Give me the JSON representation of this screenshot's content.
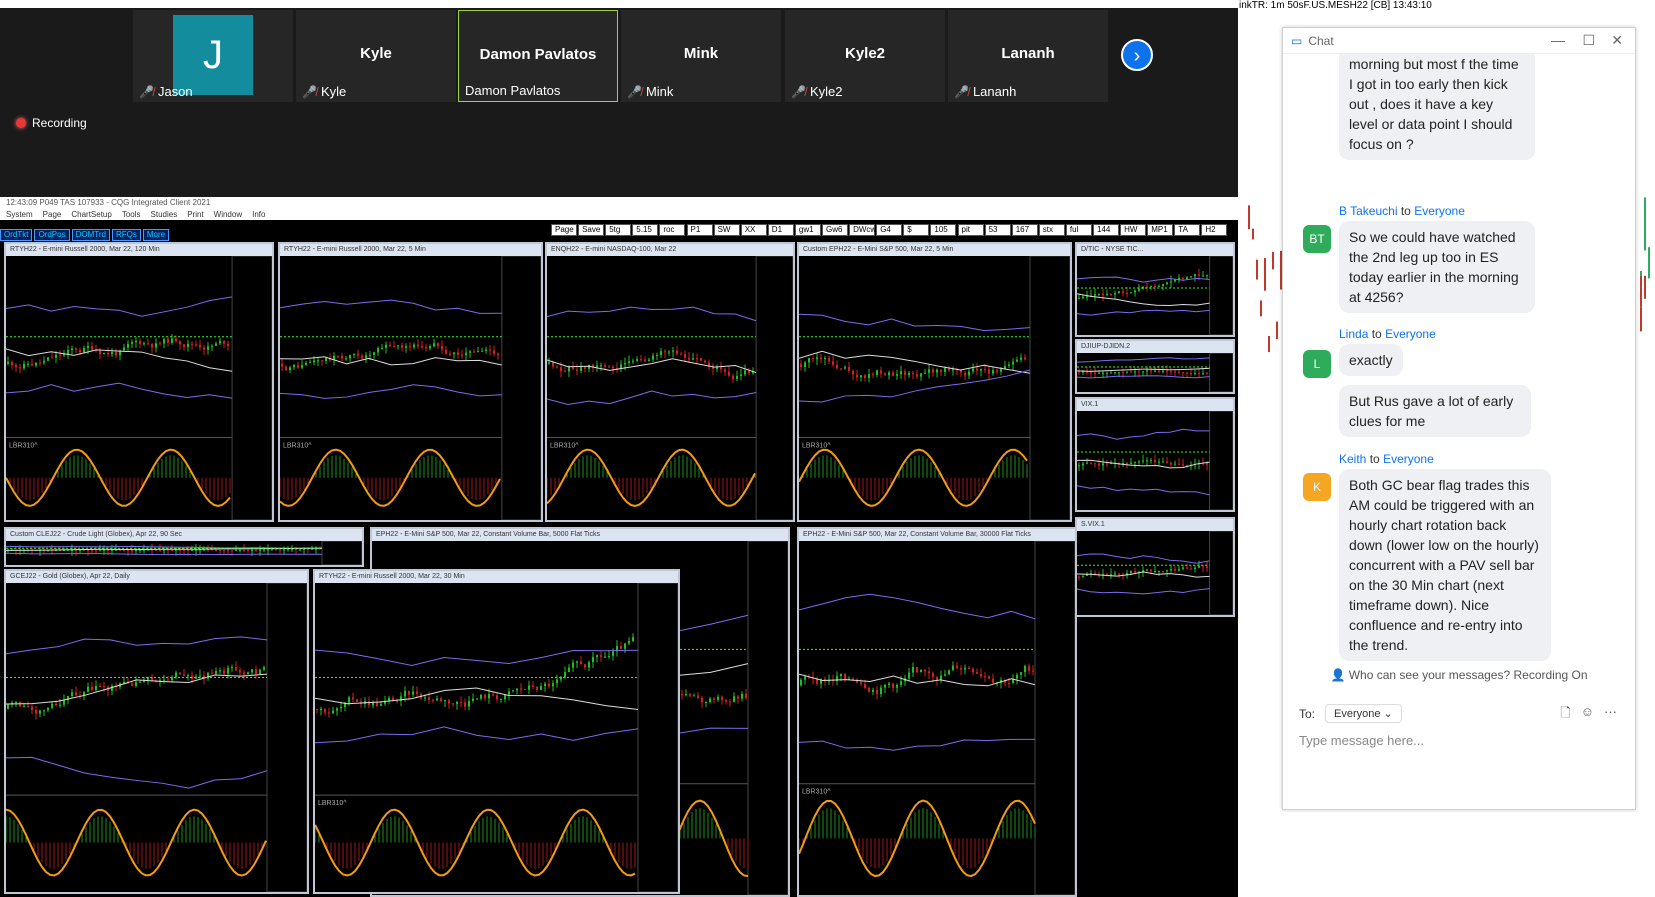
{
  "zoom": {
    "participants": [
      {
        "name": "",
        "label": "Jason",
        "avatar_letter": "J"
      },
      {
        "name": "Kyle",
        "label": "Kyle"
      },
      {
        "name": "Damon Pavlatos",
        "label": "Damon Pavlatos"
      },
      {
        "name": "Mink",
        "label": "Mink"
      },
      {
        "name": "Kyle2",
        "label": "Kyle2"
      },
      {
        "name": "Lananh",
        "label": "Lananh"
      }
    ],
    "recording": "Recording",
    "next_icon": "chevron-right-icon",
    "mic_icon": "mic-muted-icon"
  },
  "cqs": {
    "title": "12:43:09  P049 TAS  107933 - CQG Integrated Client 2021",
    "menu": [
      "System",
      "Page",
      "ChartSetup",
      "Tools",
      "Studies",
      "Print",
      "Window",
      "Info"
    ],
    "tools": [
      "OrdTkt",
      "OrdPos",
      "DOMTrd",
      "RFQs",
      "More"
    ],
    "pages": [
      "Page",
      "Save",
      "5tg",
      "5.15",
      "roc",
      "P1",
      "SW",
      "XX",
      "D1",
      "gw1",
      "Gw6",
      "DWcw",
      "G4",
      "$",
      "105",
      "pit",
      "53",
      "167",
      "stx",
      "ful",
      "144",
      "HW",
      "MP1",
      "TA",
      "H2"
    ],
    "charts": [
      {
        "title": "RTYH22 - E-mini Russell 2000, Mar 22, 120 Min",
        "study": "LBR310^"
      },
      {
        "title": "RTYH22 - E-mini Russell 2000, Mar 22, 5 Min",
        "study": "LBR310^"
      },
      {
        "title": "ENQH22 - E-mini NASDAQ-100, Mar 22",
        "study": "LBR310^"
      },
      {
        "title": "Custom EPH22 - E-Mini S&P 500, Mar 22, 5 Min",
        "study": "LBR310^"
      },
      {
        "title": "D/TIC - NYSE TIC...",
        "study": ""
      },
      {
        "title": "DJIUP-DJIDN.2",
        "study": ""
      },
      {
        "title": "VIX.1",
        "study": ""
      },
      {
        "title": "Custom CLEJ22 - Crude Light (Globex), Apr 22, 90 Sec",
        "study": ""
      },
      {
        "title": "EPH22 - E-Mini S&P 500, Mar 22, Constant Volume Bar, 5000 Flat Ticks",
        "study": ""
      },
      {
        "title": "EPH22 - E-Mini S&P 500, Mar 22, Constant Volume Bar, 30000 Flat Ticks",
        "study": "LBR310^"
      },
      {
        "title": "S.VIX.1",
        "study": ""
      },
      {
        "title": "GCEJ22 - Gold (Globex), Apr 22, Daily",
        "study": ""
      },
      {
        "title": "RTYH22 - E-mini Russell 2000, Mar 22, 30 Min",
        "study": "LBR310^"
      }
    ]
  },
  "right": {
    "header": "inkTR: 1m 50sF.US.MESH22 [CB] 13:43:10"
  },
  "chat": {
    "title": "Chat",
    "messages": [
      {
        "text": "morning but most f the time I  got in too early then kick out , does it have a key  level or data point I should  focus on ?"
      },
      {
        "sender": "B Takeuchi",
        "to": "to",
        "audience": "Everyone",
        "initials": "BT",
        "color": "#2eac5c",
        "text": "So we could have watched the 2nd leg up too in ES today earlier in the morning at 4256?"
      },
      {
        "sender": "Linda",
        "to": "to",
        "audience": "Everyone",
        "initials": "L",
        "color": "#2eac5c",
        "text": "exactly"
      },
      {
        "text": "But Rus   gave a lot of early clues for me"
      },
      {
        "sender": "Keith",
        "to": "to",
        "audience": "Everyone",
        "initials": "K",
        "color": "#f5a623",
        "text": "Both GC bear flag trades this AM could be triggered with an hourly chart rotation back down (lower low on the hourly) concurrent with a PAV sell bar on the 30 Min chart (next timeframe down). Nice confluence and re-entry into the trend."
      }
    ],
    "who_can_see": "Who can see your messages? Recording On",
    "to_label": "To:",
    "to_value": "Everyone",
    "placeholder": "Type message here..."
  }
}
